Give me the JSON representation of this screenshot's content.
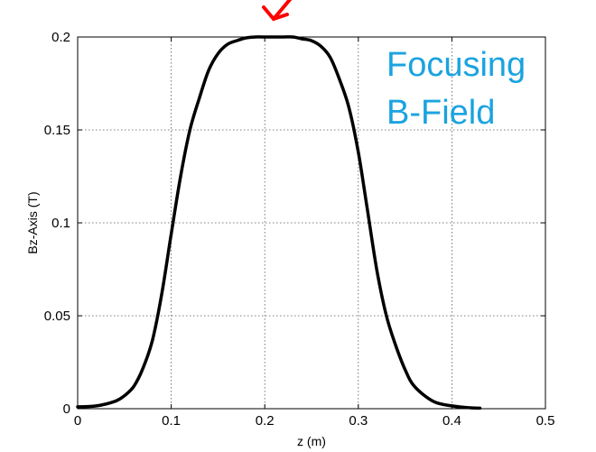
{
  "chart_data": {
    "type": "line",
    "xlabel": "z (m)",
    "ylabel": "Bz-Axis (T)",
    "xlim": [
      0,
      0.5
    ],
    "ylim": [
      0,
      0.2
    ],
    "xticks": [
      "0",
      "0.1",
      "0.2",
      "0.3",
      "0.4",
      "0.5"
    ],
    "yticks": [
      "0",
      "0.05",
      "0.1",
      "0.15",
      "0.2"
    ],
    "grid": true,
    "annotations": [
      "Focusing",
      "B-Field"
    ],
    "annotation_color": "#1aa3e0",
    "arrow_color": "#ff0000",
    "line_color": "#000000",
    "series": [
      {
        "x": [
          0,
          0.02,
          0.04,
          0.05,
          0.06,
          0.07,
          0.08,
          0.09,
          0.1,
          0.11,
          0.12,
          0.13,
          0.14,
          0.15,
          0.16,
          0.17,
          0.18,
          0.19,
          0.2,
          0.21,
          0.22,
          0.23,
          0.24,
          0.25,
          0.26,
          0.27,
          0.28,
          0.29,
          0.3,
          0.31,
          0.32,
          0.33,
          0.34,
          0.35,
          0.36,
          0.38,
          0.4,
          0.42,
          0.43
        ],
        "y": [
          0.001,
          0.0015,
          0.004,
          0.007,
          0.012,
          0.022,
          0.037,
          0.062,
          0.094,
          0.125,
          0.15,
          0.167,
          0.182,
          0.191,
          0.196,
          0.198,
          0.1995,
          0.2,
          0.2,
          0.2,
          0.2,
          0.2,
          0.199,
          0.198,
          0.195,
          0.189,
          0.177,
          0.162,
          0.138,
          0.106,
          0.074,
          0.05,
          0.034,
          0.021,
          0.012,
          0.004,
          0.0015,
          0.0005,
          0.0003
        ]
      }
    ]
  }
}
